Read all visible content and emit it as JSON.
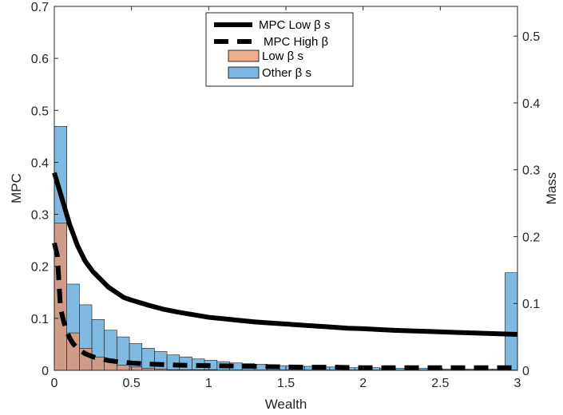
{
  "chart_data": {
    "type": "bar",
    "xlabel": "Wealth",
    "ylabel_left": "MPC",
    "ylabel_right": "Mass",
    "xlim": [
      0,
      3
    ],
    "ylim_left": [
      0,
      0.7
    ],
    "ylim_right": [
      0,
      0.5444
    ],
    "x_ticks": [
      0,
      0.5,
      1,
      1.5,
      2,
      2.5,
      3
    ],
    "x_tick_labels": [
      "0",
      "0.5",
      "1",
      "1.5",
      "2",
      "2.5",
      "3"
    ],
    "y_left_ticks": [
      0,
      0.1,
      0.2,
      0.3,
      0.4,
      0.5,
      0.6,
      0.7
    ],
    "y_left_tick_labels": [
      "0",
      "0.1",
      "0.2",
      "0.3",
      "0.4",
      "0.5",
      "0.6",
      "0.7"
    ],
    "y_right_ticks": [
      0,
      0.1,
      0.2,
      0.3,
      0.4,
      0.5
    ],
    "y_right_tick_labels": [
      "0",
      "0.1",
      "0.2",
      "0.3",
      "0.4",
      "0.5"
    ],
    "grid": false,
    "legend_position": "top-center",
    "legend": [
      {
        "label": "MPC Low β s",
        "kind": "solid-line",
        "color": "#000000"
      },
      {
        "label": "MPC High β",
        "kind": "dashed-line",
        "color": "#000000"
      },
      {
        "label": "Low β s",
        "kind": "patch",
        "color": "#E8916A"
      },
      {
        "label": "Other β s",
        "kind": "patch",
        "color": "#4F9FD6"
      }
    ],
    "histogram": {
      "bin_width": 0.0811,
      "bin_starts": [
        0,
        0.0811,
        0.1622,
        0.2432,
        0.3243,
        0.4054,
        0.4865,
        0.5676,
        0.6486,
        0.7297,
        0.8108,
        0.8919,
        0.973,
        1.0541,
        1.1351,
        1.2162,
        1.2973,
        1.3784,
        1.4595,
        1.5405,
        1.6216,
        1.7027,
        1.7838,
        1.8649,
        1.9459,
        2.027,
        2.1081,
        2.1892,
        2.2703,
        2.3514,
        2.4324,
        2.5135,
        2.5946,
        2.6757,
        2.7568,
        2.8378,
        2.9189
      ],
      "low_beta_mass": [
        0.22,
        0.056,
        0.033,
        0.02,
        0.013,
        0.008,
        0.005,
        0.003,
        0.002,
        0.001,
        0.001,
        0.001,
        0.001,
        0.0005,
        0.0005,
        0.0005,
        0.0005,
        0.0005,
        0.0005,
        0.0005,
        0.0005,
        0.0005,
        0.0005,
        0.0005,
        0.0005,
        0.0005,
        0.0005,
        0.0005,
        0.0005,
        0.0005,
        0.0005,
        0.0005,
        0.0005,
        0.0005,
        0.0005,
        0.0005,
        0.0005
      ],
      "other_beta_mass": [
        0.365,
        0.129,
        0.098,
        0.076,
        0.06,
        0.05,
        0.04,
        0.033,
        0.028,
        0.023,
        0.02,
        0.017,
        0.015,
        0.013,
        0.011,
        0.01,
        0.009,
        0.008,
        0.007,
        0.006,
        0.006,
        0.005,
        0.005,
        0.004,
        0.004,
        0.004,
        0.003,
        0.003,
        0.003,
        0.003,
        0.003,
        0.002,
        0.002,
        0.002,
        0.002,
        0.002,
        0.146
      ]
    },
    "mpc_low_beta": {
      "x": [
        0,
        0.04,
        0.08,
        0.1,
        0.15,
        0.2,
        0.25,
        0.3,
        0.35,
        0.4,
        0.45,
        0.5,
        0.6,
        0.7,
        0.8,
        0.9,
        1.0,
        1.1,
        1.2,
        1.3,
        1.4,
        1.5,
        1.6,
        1.7,
        1.8,
        1.9,
        2.0,
        2.2,
        2.4,
        2.6,
        2.8,
        3.0
      ],
      "y": [
        0.38,
        0.34,
        0.3,
        0.28,
        0.24,
        0.21,
        0.19,
        0.175,
        0.16,
        0.15,
        0.14,
        0.135,
        0.126,
        0.118,
        0.112,
        0.107,
        0.102,
        0.099,
        0.096,
        0.093,
        0.091,
        0.089,
        0.087,
        0.085,
        0.083,
        0.081,
        0.08,
        0.077,
        0.075,
        0.073,
        0.071,
        0.069
      ]
    },
    "mpc_high_beta": {
      "x": [
        0,
        0.02,
        0.04,
        0.06,
        0.08,
        0.1,
        0.12,
        0.15,
        0.2,
        0.25,
        0.3,
        0.35,
        0.4,
        0.5,
        0.6,
        0.8,
        1.0,
        1.2,
        1.4,
        1.6,
        1.8,
        2.0,
        2.2,
        2.4,
        2.6,
        2.8,
        3.0
      ],
      "y": [
        0.245,
        0.22,
        0.12,
        0.095,
        0.075,
        0.062,
        0.052,
        0.042,
        0.032,
        0.026,
        0.022,
        0.019,
        0.017,
        0.014,
        0.012,
        0.01,
        0.009,
        0.008,
        0.007,
        0.006,
        0.006,
        0.005,
        0.005,
        0.005,
        0.005,
        0.005,
        0.005
      ]
    }
  }
}
